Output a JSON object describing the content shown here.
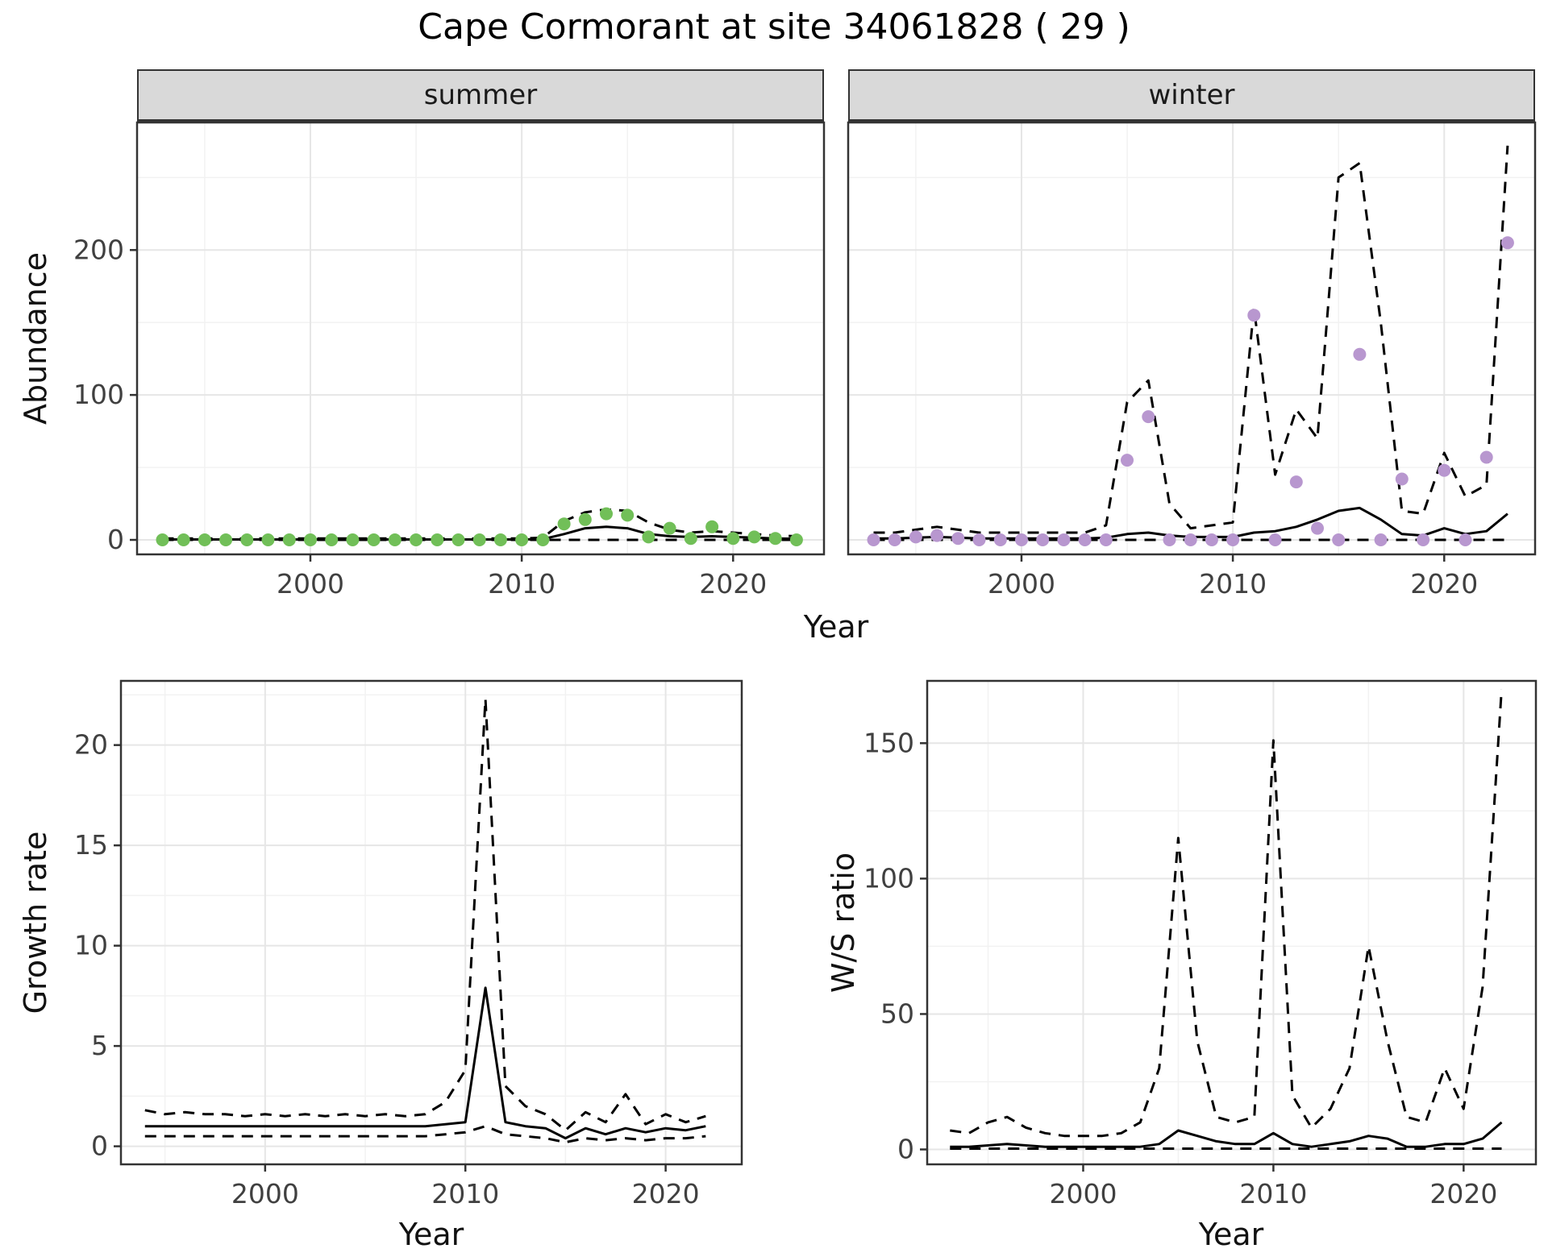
{
  "title": "Cape Cormorant at site 34061828 ( 29 )",
  "labels": {
    "x": "Year",
    "abundance": "Abundance",
    "growth": "Growth rate",
    "ws": "W/S ratio"
  },
  "facets": {
    "summer": "summer",
    "winter": "winter"
  },
  "style": {
    "summer_point_color": "#71bf58",
    "winter_point_color": "#b897cf",
    "line_color": "#000000",
    "border_color": "#333333",
    "strip_bg": "#d9d9d9",
    "grid_major": "#e6e6e6",
    "grid_minor": "#f2f2f2",
    "tick_text_color": "#404040"
  },
  "chart_data": [
    {
      "id": "abundance-summer",
      "type": "scatter",
      "facet": "summer",
      "title": "summer",
      "xlabel": "Year",
      "ylabel": "Abundance",
      "xlim": [
        1991.8,
        2024.3
      ],
      "ylim": [
        -10,
        288
      ],
      "xticks": [
        2000,
        2010,
        2020
      ],
      "yticks": [
        0,
        100,
        200
      ],
      "xminor": [
        1995,
        2005,
        2015
      ],
      "yminor": [
        50,
        150,
        250
      ],
      "x_years": [
        1993,
        1994,
        1995,
        1996,
        1997,
        1998,
        1999,
        2000,
        2001,
        2002,
        2003,
        2004,
        2005,
        2006,
        2007,
        2008,
        2009,
        2010,
        2011,
        2012,
        2013,
        2014,
        2015,
        2016,
        2017,
        2018,
        2019,
        2020,
        2021,
        2022,
        2023
      ],
      "series": [
        {
          "name": "lower-ci",
          "type": "line",
          "dashed": true,
          "y": [
            0,
            0,
            0,
            0,
            0,
            0,
            0,
            0,
            0,
            0,
            0,
            0,
            0,
            0,
            0,
            0,
            0,
            0,
            0,
            0,
            0,
            0,
            0,
            0,
            0,
            0,
            0,
            0,
            0,
            0,
            0
          ]
        },
        {
          "name": "upper-ci",
          "type": "line",
          "dashed": true,
          "y": [
            1,
            1,
            1,
            1,
            1,
            1,
            1,
            1,
            1,
            1,
            1,
            1,
            1,
            1,
            1,
            1,
            1,
            1,
            1.5,
            13,
            19,
            21,
            20,
            12,
            7,
            5,
            6,
            5,
            4,
            3,
            2.5
          ]
        },
        {
          "name": "model-fit",
          "type": "line",
          "dashed": false,
          "y": [
            0.3,
            0.3,
            0.3,
            0.3,
            0.3,
            0.3,
            0.3,
            0.3,
            0.3,
            0.3,
            0.3,
            0.3,
            0.3,
            0.3,
            0.3,
            0.3,
            0.3,
            0.3,
            0.5,
            4,
            8,
            9,
            8,
            4,
            2.5,
            2,
            2.5,
            2,
            1.5,
            1,
            0.8
          ]
        },
        {
          "name": "observed-counts",
          "type": "points",
          "color": "#71bf58",
          "y": [
            0,
            0,
            0,
            0,
            0,
            0,
            0,
            0,
            0,
            0,
            0,
            0,
            0,
            0,
            0,
            0,
            0,
            0,
            0,
            11,
            14,
            18,
            17,
            2,
            8,
            1,
            9,
            1,
            2,
            1,
            0
          ]
        }
      ]
    },
    {
      "id": "abundance-winter",
      "type": "scatter",
      "facet": "winter",
      "title": "winter",
      "xlabel": "Year",
      "ylabel": "Abundance",
      "xlim": [
        1991.8,
        2024.3
      ],
      "ylim": [
        -10,
        288
      ],
      "xticks": [
        2000,
        2010,
        2020
      ],
      "yticks": [
        0,
        100,
        200
      ],
      "xminor": [
        1995,
        2005,
        2015
      ],
      "yminor": [
        50,
        150,
        250
      ],
      "x_years": [
        1993,
        1994,
        1995,
        1996,
        1997,
        1998,
        1999,
        2000,
        2001,
        2002,
        2003,
        2004,
        2005,
        2006,
        2007,
        2008,
        2009,
        2010,
        2011,
        2012,
        2013,
        2014,
        2015,
        2016,
        2017,
        2018,
        2019,
        2020,
        2021,
        2022,
        2023
      ],
      "series": [
        {
          "name": "lower-ci",
          "type": "line",
          "dashed": true,
          "y": [
            0,
            0,
            0,
            0,
            0,
            0,
            0,
            0,
            0,
            0,
            0,
            0,
            0,
            0,
            0,
            0,
            0,
            0,
            0,
            0,
            0,
            0,
            0,
            0,
            0,
            0,
            0,
            0,
            0,
            0,
            0
          ]
        },
        {
          "name": "upper-ci",
          "type": "line",
          "dashed": true,
          "y": [
            5,
            5,
            7,
            9,
            7,
            5,
            5,
            5,
            5,
            5,
            5,
            10,
            95,
            110,
            25,
            8,
            10,
            12,
            160,
            45,
            90,
            70,
            250,
            260,
            150,
            20,
            18,
            60,
            30,
            38,
            272
          ]
        },
        {
          "name": "model-fit",
          "type": "line",
          "dashed": false,
          "y": [
            1,
            1,
            1.5,
            2,
            1.5,
            1,
            1,
            1,
            1,
            1,
            1,
            1.5,
            4,
            5,
            3,
            2,
            2,
            2,
            5,
            6,
            9,
            14,
            20,
            22,
            14,
            4,
            3,
            8,
            4,
            6,
            18
          ]
        },
        {
          "name": "observed-counts",
          "type": "points",
          "color": "#b897cf",
          "y": [
            0,
            0,
            2,
            3,
            1,
            0,
            0,
            0,
            0,
            0,
            0,
            0,
            55,
            85,
            0,
            0,
            0,
            0,
            155,
            0,
            40,
            8,
            0,
            128,
            0,
            42,
            0,
            48,
            0,
            57,
            205
          ]
        }
      ]
    },
    {
      "id": "growth-rate",
      "type": "line",
      "title": "",
      "xlabel": "Year",
      "ylabel": "Growth rate",
      "xlim": [
        1992.8,
        2023.8
      ],
      "ylim": [
        -0.9,
        23.2
      ],
      "xticks": [
        2000,
        2010,
        2020
      ],
      "yticks": [
        0,
        5,
        10,
        15,
        20
      ],
      "xminor": [
        1995,
        2005,
        2015
      ],
      "yminor": [
        2.5,
        7.5,
        12.5,
        17.5,
        22.5
      ],
      "x_years": [
        1994,
        1995,
        1996,
        1997,
        1998,
        1999,
        2000,
        2001,
        2002,
        2003,
        2004,
        2005,
        2006,
        2007,
        2008,
        2009,
        2010,
        2011,
        2012,
        2013,
        2014,
        2015,
        2016,
        2017,
        2018,
        2019,
        2020,
        2021,
        2022
      ],
      "series": [
        {
          "name": "lower-ci",
          "type": "line",
          "dashed": true,
          "y": [
            0.5,
            0.5,
            0.5,
            0.5,
            0.5,
            0.5,
            0.5,
            0.5,
            0.5,
            0.5,
            0.5,
            0.5,
            0.5,
            0.5,
            0.5,
            0.6,
            0.7,
            1.0,
            0.6,
            0.5,
            0.4,
            0.2,
            0.4,
            0.3,
            0.4,
            0.3,
            0.4,
            0.4,
            0.5
          ]
        },
        {
          "name": "upper-ci",
          "type": "line",
          "dashed": true,
          "y": [
            1.8,
            1.6,
            1.7,
            1.6,
            1.6,
            1.5,
            1.6,
            1.5,
            1.6,
            1.5,
            1.6,
            1.5,
            1.6,
            1.5,
            1.6,
            2.2,
            3.8,
            22.3,
            3.0,
            2.0,
            1.6,
            0.8,
            1.7,
            1.2,
            2.6,
            1.1,
            1.6,
            1.2,
            1.5
          ]
        },
        {
          "name": "model-fit",
          "type": "line",
          "dashed": false,
          "y": [
            1,
            1,
            1,
            1,
            1,
            1,
            1,
            1,
            1,
            1,
            1,
            1,
            1,
            1,
            1,
            1.1,
            1.2,
            7.9,
            1.2,
            1,
            0.9,
            0.4,
            0.9,
            0.6,
            0.9,
            0.7,
            0.9,
            0.8,
            1.0
          ]
        }
      ]
    },
    {
      "id": "ws-ratio",
      "type": "line",
      "title": "",
      "xlabel": "Year",
      "ylabel": "W/S ratio",
      "xlim": [
        1991.8,
        2023.8
      ],
      "ylim": [
        -5.5,
        173
      ],
      "xticks": [
        2000,
        2010,
        2020
      ],
      "yticks": [
        0,
        50,
        100,
        150
      ],
      "xminor": [
        1995,
        2005,
        2015
      ],
      "yminor": [
        25,
        75,
        125
      ],
      "x_years": [
        1993,
        1994,
        1995,
        1996,
        1997,
        1998,
        1999,
        2000,
        2001,
        2002,
        2003,
        2004,
        2005,
        2006,
        2007,
        2008,
        2009,
        2010,
        2011,
        2012,
        2013,
        2014,
        2015,
        2016,
        2017,
        2018,
        2019,
        2020,
        2021,
        2022
      ],
      "series": [
        {
          "name": "lower-ci",
          "type": "line",
          "dashed": true,
          "y": [
            0.3,
            0.3,
            0.3,
            0.3,
            0.3,
            0.3,
            0.3,
            0.3,
            0.3,
            0.3,
            0.3,
            0.3,
            0.3,
            0.3,
            0.3,
            0.3,
            0.3,
            0.3,
            0.3,
            0.3,
            0.3,
            0.3,
            0.3,
            0.3,
            0.3,
            0.3,
            0.3,
            0.3,
            0.3,
            0.3
          ]
        },
        {
          "name": "upper-ci",
          "type": "line",
          "dashed": true,
          "y": [
            7,
            6,
            10,
            12,
            8,
            6,
            5,
            5,
            5,
            6,
            10,
            30,
            115,
            40,
            12,
            10,
            12,
            151,
            20,
            8,
            15,
            30,
            75,
            40,
            12,
            10,
            30,
            15,
            60,
            170
          ]
        },
        {
          "name": "model-fit",
          "type": "line",
          "dashed": false,
          "y": [
            1,
            1,
            1.5,
            2,
            1.5,
            1,
            1,
            1,
            1,
            1,
            1,
            2,
            7,
            5,
            3,
            2,
            2,
            6,
            2,
            1,
            2,
            3,
            5,
            4,
            1,
            1,
            2,
            2,
            4,
            10
          ]
        }
      ]
    }
  ]
}
